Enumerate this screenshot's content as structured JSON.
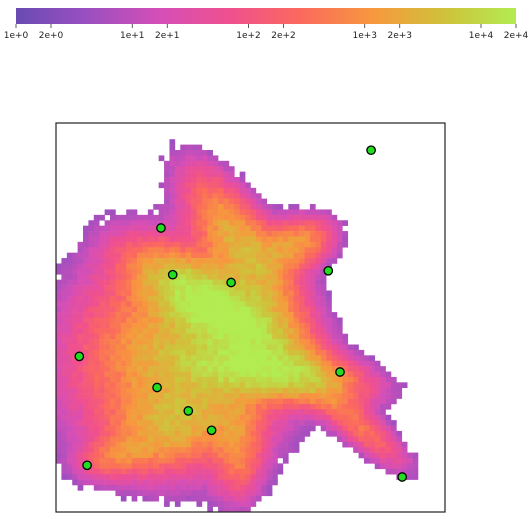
{
  "chart_data": {
    "type": "heatmap",
    "title": "",
    "xlabel": "",
    "ylabel": "",
    "colorbar": {
      "scale": "log",
      "range": [
        1,
        20000
      ],
      "ticks": [
        {
          "value": 1,
          "label": "1e+0"
        },
        {
          "value": 2,
          "label": "2e+0"
        },
        {
          "value": 10,
          "label": "1e+1"
        },
        {
          "value": 20,
          "label": "2e+1"
        },
        {
          "value": 100,
          "label": "1e+2"
        },
        {
          "value": 200,
          "label": "2e+2"
        },
        {
          "value": 1000,
          "label": "1e+3"
        },
        {
          "value": 2000,
          "label": "2e+3"
        },
        {
          "value": 10000,
          "label": "1e+4"
        },
        {
          "value": 20000,
          "label": "2e+4"
        }
      ],
      "colors": [
        "#6a4bb3",
        "#9b4fc0",
        "#d44fb8",
        "#f0508e",
        "#fb6a5d",
        "#f7983e",
        "#cfc23a",
        "#b2ec51"
      ]
    },
    "xlim": [
      0,
      1
    ],
    "ylim": [
      0,
      1
    ],
    "axes_ticks": "none",
    "grid": false,
    "marker_color": "#22dd22",
    "markers": [
      {
        "x": 0.81,
        "y": 0.93
      },
      {
        "x": 0.27,
        "y": 0.73
      },
      {
        "x": 0.3,
        "y": 0.61
      },
      {
        "x": 0.45,
        "y": 0.59
      },
      {
        "x": 0.7,
        "y": 0.62
      },
      {
        "x": 0.06,
        "y": 0.4
      },
      {
        "x": 0.73,
        "y": 0.36
      },
      {
        "x": 0.26,
        "y": 0.32
      },
      {
        "x": 0.34,
        "y": 0.26
      },
      {
        "x": 0.4,
        "y": 0.21
      },
      {
        "x": 0.08,
        "y": 0.12
      },
      {
        "x": 0.89,
        "y": 0.09
      }
    ]
  }
}
